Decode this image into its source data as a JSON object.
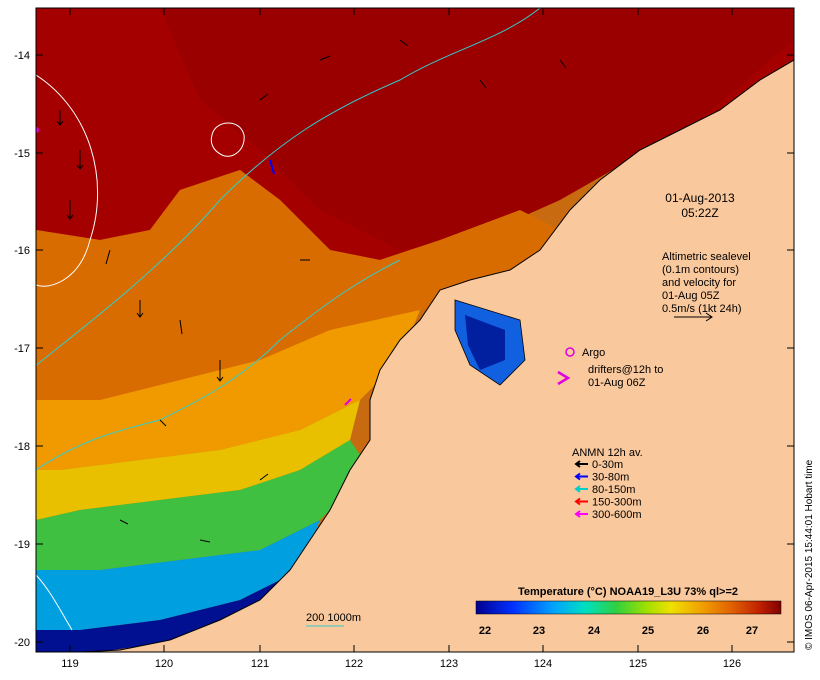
{
  "map": {
    "timestamp_date": "01-Aug-2013",
    "timestamp_time": "05:22Z",
    "lon_ticks": [
      "119",
      "120",
      "121",
      "122",
      "123",
      "124",
      "125",
      "126"
    ],
    "lat_ticks": [
      "-14",
      "-15",
      "-16",
      "-17",
      "-18",
      "-19",
      "-20"
    ],
    "sealevel_note": [
      "Altimetric sealevel",
      "(0.1m contours)",
      "and velocity for",
      "01-Aug 05Z",
      "0.5m/s (1kt 24h)"
    ],
    "argo_label": "Argo",
    "drifters_label": [
      "drifters@12h to",
      "01-Aug 06Z"
    ],
    "anmn": {
      "title": "ANMN 12h av.",
      "items": [
        {
          "label": "0-30m",
          "color": "#000000"
        },
        {
          "label": "30-80m",
          "color": "#0000ff"
        },
        {
          "label": "80-150m",
          "color": "#00cccc"
        },
        {
          "label": "150-300m",
          "color": "#ff0000"
        },
        {
          "label": "300-600m",
          "color": "#ff00ff"
        }
      ]
    },
    "bathy_label": "200  1000m",
    "colorbar": {
      "title": "Temperature (°C) NOAA19_L3U 73% ql>=2",
      "ticks": [
        "22",
        "23",
        "24",
        "25",
        "26",
        "27"
      ]
    },
    "credit": "© IMOS 06-Apr-2015 15:44:01 Hobart time",
    "colors": {
      "land": "#f9c89c",
      "hot": "#a00000",
      "warm": "#d06000",
      "mid": "#f0a000",
      "cool": "#30c040",
      "cold": "#1010a0",
      "argo": "#e000e0",
      "isobath": "#33cccc"
    }
  }
}
